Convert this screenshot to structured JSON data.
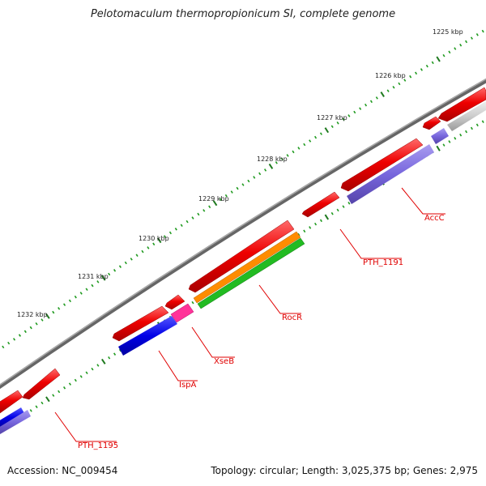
{
  "title": "Pelotomaculum thermopropionicum SI, complete genome",
  "footer": {
    "accession": "Accession: NC_009454",
    "topology": "Topology: circular; Length: 3,025,375 bp; Genes: 2,975"
  },
  "colors": {
    "backbone": "#808080",
    "tick_major": "#1f7a1f",
    "tick_minor": "#1f9a1f",
    "label": "#e00000",
    "gene_red": "#ee0000",
    "gene_blue": "#0000e6",
    "gene_purple": "#7766dd",
    "gene_pink": "#ff3399",
    "gene_orange": "#ff8c00",
    "gene_green": "#22bb22",
    "gene_grey": "#cccccc"
  },
  "scale_labels": [
    "1225 kbp",
    "1226 kbp",
    "1227 kbp",
    "1228 kbp",
    "1229 kbp",
    "1230 kbp",
    "1231 kbp",
    "1232 kbp"
  ],
  "gene_labels": [
    "AccC",
    "PTH_1191",
    "RocR",
    "XseB",
    "IspA",
    "PTH_1195"
  ]
}
